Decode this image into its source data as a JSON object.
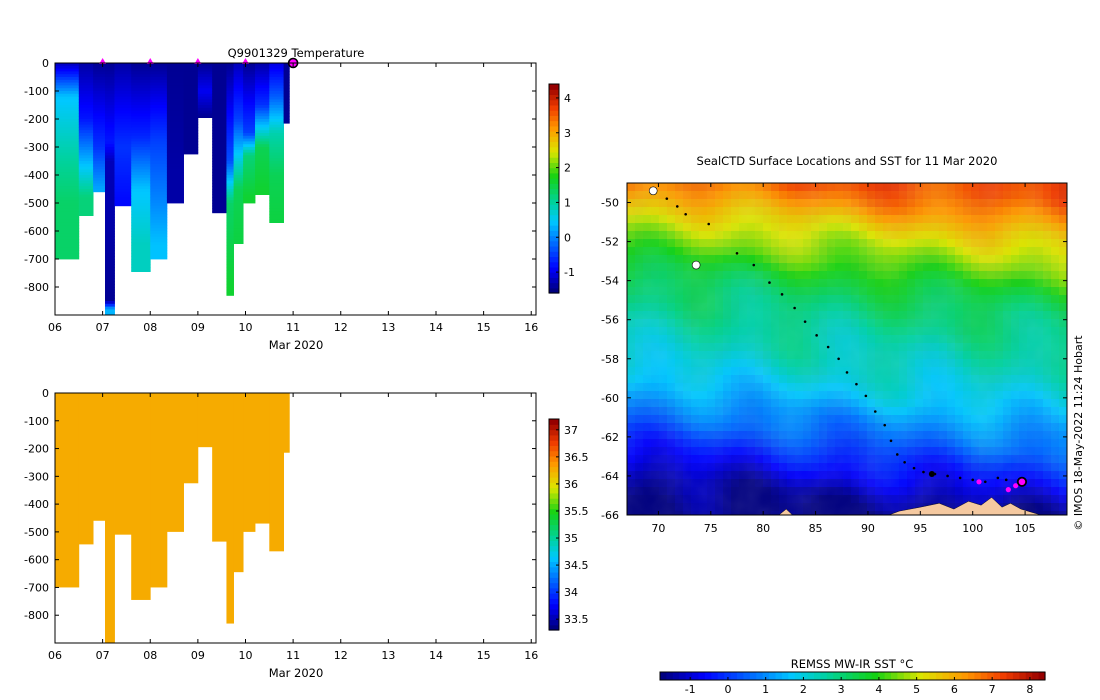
{
  "footer_note": "© IMOS 18-May-2022 11:24 Hobart",
  "chart_data": [
    {
      "type": "heatmap",
      "title": "Q9901329  Temperature",
      "xlabel": "Mar 2020",
      "ylabel": "",
      "x_tick_labels": [
        "06",
        "07",
        "08",
        "09",
        "10",
        "11",
        "12",
        "13",
        "14",
        "15",
        "16"
      ],
      "y_tick_labels": [
        "0",
        "-100",
        "-200",
        "-300",
        "-400",
        "-500",
        "-600",
        "-700",
        "-800"
      ],
      "xlim": [
        6,
        16.1
      ],
      "ylim": [
        -900,
        0
      ],
      "colorbar": {
        "min": -1.6,
        "max": 4.4,
        "ticks": [
          "-1",
          "0",
          "1",
          "2",
          "3",
          "4"
        ]
      },
      "profile_markers_day": [
        7.0,
        8.0,
        9.0,
        10.0
      ],
      "current_position_day": 11.0,
      "profiles": [
        {
          "x0": 6.0,
          "x1": 6.5,
          "depth": 700,
          "stops": [
            [
              0,
              -1.3
            ],
            [
              120,
              0.4
            ],
            [
              350,
              1.0
            ],
            [
              500,
              1.3
            ]
          ]
        },
        {
          "x0": 6.5,
          "x1": 6.8,
          "depth": 545,
          "stops": [
            [
              0,
              -1.4
            ],
            [
              200,
              -0.8
            ],
            [
              350,
              0.3
            ],
            [
              480,
              1.2
            ]
          ]
        },
        {
          "x0": 6.8,
          "x1": 7.05,
          "depth": 460,
          "stops": [
            [
              0,
              -1.5
            ],
            [
              300,
              -0.6
            ],
            [
              450,
              0.2
            ]
          ]
        },
        {
          "x0": 7.05,
          "x1": 7.25,
          "depth": 900,
          "stops": [
            [
              0,
              -1.5
            ],
            [
              280,
              -0.8
            ],
            [
              350,
              -1.3
            ],
            [
              850,
              -1.5
            ],
            [
              880,
              0.3
            ]
          ]
        },
        {
          "x0": 7.25,
          "x1": 7.6,
          "depth": 510,
          "stops": [
            [
              0,
              -1.4
            ],
            [
              300,
              -0.6
            ],
            [
              500,
              -0.9
            ]
          ]
        },
        {
          "x0": 7.6,
          "x1": 8.0,
          "depth": 745,
          "stops": [
            [
              0,
              -1.5
            ],
            [
              260,
              -0.7
            ],
            [
              450,
              0.4
            ],
            [
              650,
              0.8
            ]
          ]
        },
        {
          "x0": 8.0,
          "x1": 8.35,
          "depth": 700,
          "stops": [
            [
              0,
              -1.5
            ],
            [
              280,
              -0.5
            ],
            [
              500,
              0.0
            ],
            [
              650,
              0.4
            ]
          ]
        },
        {
          "x0": 8.35,
          "x1": 8.7,
          "depth": 500,
          "stops": [
            [
              0,
              -1.5
            ],
            [
              400,
              -1.4
            ]
          ]
        },
        {
          "x0": 8.7,
          "x1": 9.0,
          "depth": 325,
          "stops": [
            [
              0,
              -1.5
            ],
            [
              300,
              -1.5
            ]
          ]
        },
        {
          "x0": 9.0,
          "x1": 9.3,
          "depth": 195,
          "stops": [
            [
              0,
              -1.5
            ],
            [
              100,
              -1.0
            ],
            [
              190,
              -1.5
            ]
          ]
        },
        {
          "x0": 9.3,
          "x1": 9.6,
          "depth": 535,
          "stops": [
            [
              0,
              -1.5
            ],
            [
              500,
              -1.5
            ]
          ]
        },
        {
          "x0": 9.6,
          "x1": 9.75,
          "depth": 830,
          "stops": [
            [
              0,
              -1.5
            ],
            [
              350,
              -0.4
            ],
            [
              500,
              1.3
            ],
            [
              800,
              1.6
            ]
          ]
        },
        {
          "x0": 9.75,
          "x1": 9.95,
          "depth": 645,
          "stops": [
            [
              0,
              -1.3
            ],
            [
              200,
              -0.5
            ],
            [
              330,
              0.5
            ],
            [
              450,
              1.4
            ],
            [
              620,
              1.5
            ]
          ]
        },
        {
          "x0": 9.95,
          "x1": 10.2,
          "depth": 500,
          "stops": [
            [
              0,
              -1.5
            ],
            [
              250,
              -0.5
            ],
            [
              330,
              1.2
            ],
            [
              480,
              1.6
            ]
          ]
        },
        {
          "x0": 10.2,
          "x1": 10.5,
          "depth": 470,
          "stops": [
            [
              0,
              -1.4
            ],
            [
              150,
              -0.6
            ],
            [
              300,
              1.4
            ],
            [
              450,
              1.6
            ]
          ]
        },
        {
          "x0": 10.5,
          "x1": 10.8,
          "depth": 570,
          "stops": [
            [
              0,
              -1.1
            ],
            [
              120,
              -0.3
            ],
            [
              250,
              0.9
            ],
            [
              400,
              1.4
            ],
            [
              550,
              1.5
            ]
          ]
        },
        {
          "x0": 10.8,
          "x1": 10.92,
          "depth": 215,
          "stops": [
            [
              0,
              -1.5
            ],
            [
              200,
              -1.5
            ]
          ]
        }
      ]
    },
    {
      "type": "heatmap",
      "title": "",
      "xlabel": "Mar 2020",
      "ylabel": "",
      "x_tick_labels": [
        "06",
        "07",
        "08",
        "09",
        "10",
        "11",
        "12",
        "13",
        "14",
        "15",
        "16"
      ],
      "y_tick_labels": [
        "0",
        "-100",
        "-200",
        "-300",
        "-400",
        "-500",
        "-600",
        "-700",
        "-800"
      ],
      "xlim": [
        6,
        16.1
      ],
      "ylim": [
        -900,
        0
      ],
      "colorbar": {
        "min": 33.3,
        "max": 37.2,
        "ticks": [
          "33.5",
          "34",
          "34.5",
          "35",
          "35.5",
          "36",
          "36.5",
          "37"
        ]
      },
      "fill_value": 36.3,
      "profile_depths": [
        {
          "x0": 6.0,
          "x1": 6.5,
          "depth": 700
        },
        {
          "x0": 6.5,
          "x1": 6.8,
          "depth": 545
        },
        {
          "x0": 6.8,
          "x1": 7.05,
          "depth": 460
        },
        {
          "x0": 7.05,
          "x1": 7.25,
          "depth": 900
        },
        {
          "x0": 7.25,
          "x1": 7.6,
          "depth": 510
        },
        {
          "x0": 7.6,
          "x1": 8.0,
          "depth": 745
        },
        {
          "x0": 8.0,
          "x1": 8.35,
          "depth": 700
        },
        {
          "x0": 8.35,
          "x1": 8.7,
          "depth": 500
        },
        {
          "x0": 8.7,
          "x1": 9.0,
          "depth": 325
        },
        {
          "x0": 9.0,
          "x1": 9.3,
          "depth": 195
        },
        {
          "x0": 9.3,
          "x1": 9.6,
          "depth": 535
        },
        {
          "x0": 9.6,
          "x1": 9.75,
          "depth": 830
        },
        {
          "x0": 9.75,
          "x1": 9.95,
          "depth": 645
        },
        {
          "x0": 9.95,
          "x1": 10.2,
          "depth": 500
        },
        {
          "x0": 10.2,
          "x1": 10.5,
          "depth": 470
        },
        {
          "x0": 10.5,
          "x1": 10.8,
          "depth": 570
        },
        {
          "x0": 10.8,
          "x1": 10.92,
          "depth": 215
        }
      ]
    },
    {
      "type": "heatmap",
      "title": "SealCTD Surface Locations and SST for 11 Mar 2020",
      "xlabel": "",
      "ylabel": "",
      "x_tick_labels": [
        "70",
        "75",
        "80",
        "85",
        "90",
        "95",
        "100",
        "105"
      ],
      "x_tick_values": [
        70,
        75,
        80,
        85,
        90,
        95,
        100,
        105
      ],
      "y_tick_labels": [
        "-50",
        "-52",
        "-54",
        "-56",
        "-58",
        "-60",
        "-62",
        "-64",
        "-66"
      ],
      "y_tick_values": [
        -50,
        -52,
        -54,
        -56,
        -58,
        -60,
        -62,
        -64,
        -66
      ],
      "xlim": [
        67,
        109
      ],
      "ylim": [
        -66,
        -49
      ],
      "colorbar": {
        "label": "REMSS MW-IR SST °C",
        "min": -1.8,
        "max": 8.4,
        "ticks": [
          "-1",
          "0",
          "1",
          "2",
          "3",
          "4",
          "5",
          "6",
          "7",
          "8"
        ]
      },
      "sst_by_latitude": [
        [
          -49,
          7.2
        ],
        [
          -50,
          6.5
        ],
        [
          -51,
          5.6
        ],
        [
          -52,
          4.9
        ],
        [
          -53,
          4.3
        ],
        [
          -54,
          3.6
        ],
        [
          -55,
          3.1
        ],
        [
          -56,
          2.8
        ],
        [
          -57,
          2.5
        ],
        [
          -58,
          2.3
        ],
        [
          -59,
          2.0
        ],
        [
          -60,
          1.6
        ],
        [
          -61,
          1.0
        ],
        [
          -62,
          0.5
        ],
        [
          -63,
          -0.2
        ],
        [
          -64,
          -0.8
        ],
        [
          -65,
          -1.5
        ],
        [
          -66,
          -1.8
        ]
      ],
      "track": [
        [
          70.8,
          -49.8
        ],
        [
          71.8,
          -50.2
        ],
        [
          72.6,
          -50.6
        ],
        [
          74.8,
          -51.1
        ],
        [
          77.5,
          -52.6
        ],
        [
          79.1,
          -53.2
        ],
        [
          80.6,
          -54.1
        ],
        [
          81.8,
          -54.7
        ],
        [
          83.0,
          -55.4
        ],
        [
          84.0,
          -56.1
        ],
        [
          85.1,
          -56.8
        ],
        [
          86.2,
          -57.4
        ],
        [
          87.2,
          -58.0
        ],
        [
          88.0,
          -58.7
        ],
        [
          88.9,
          -59.3
        ],
        [
          89.8,
          -59.9
        ],
        [
          90.7,
          -60.7
        ],
        [
          91.6,
          -61.4
        ],
        [
          92.2,
          -62.2
        ],
        [
          92.8,
          -62.9
        ],
        [
          93.5,
          -63.3
        ],
        [
          94.4,
          -63.6
        ],
        [
          95.3,
          -63.8
        ],
        [
          96.4,
          -63.9
        ],
        [
          97.6,
          -64.0
        ],
        [
          98.8,
          -64.1
        ],
        [
          100.0,
          -64.2
        ],
        [
          101.2,
          -64.3
        ],
        [
          102.4,
          -64.1
        ],
        [
          103.2,
          -64.2
        ]
      ],
      "profile_positions": [
        [
          100.6,
          -64.3
        ],
        [
          103.4,
          -64.7
        ],
        [
          104.1,
          -64.5
        ]
      ],
      "current_position": [
        104.7,
        -64.3
      ],
      "ship_position": [
        96.1,
        -63.9
      ],
      "land": [
        [
          [
            92.0,
            -66
          ],
          [
            93.0,
            -65.8
          ],
          [
            95.0,
            -65.6
          ],
          [
            96.8,
            -65.4
          ],
          [
            98.2,
            -65.7
          ],
          [
            99.6,
            -65.3
          ],
          [
            100.8,
            -65.5
          ],
          [
            101.8,
            -65.1
          ],
          [
            102.8,
            -65.6
          ],
          [
            103.6,
            -65.4
          ],
          [
            104.6,
            -65.7
          ],
          [
            106.5,
            -66
          ]
        ],
        [
          [
            81.5,
            -66
          ],
          [
            82.2,
            -65.7
          ],
          [
            82.8,
            -66
          ]
        ]
      ],
      "islands": [
        [
          69.5,
          -49.4
        ],
        [
          73.6,
          -53.2
        ]
      ]
    }
  ]
}
